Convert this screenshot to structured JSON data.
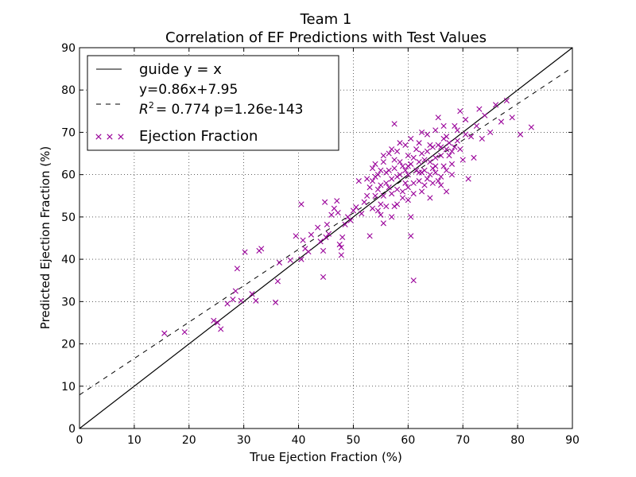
{
  "chart_data": {
    "type": "scatter",
    "title": "Team 1",
    "subtitle": "Correlation of EF Predictions with Test Values",
    "xlabel": "True Ejection Fraction (%)",
    "ylabel": "Predicted Ejection Fraction (%)",
    "xlim": [
      0,
      90
    ],
    "ylim": [
      0,
      90
    ],
    "xticks": [
      "0",
      "10",
      "20",
      "30",
      "40",
      "50",
      "60",
      "70",
      "80",
      "90"
    ],
    "yticks": [
      "0",
      "10",
      "20",
      "30",
      "40",
      "50",
      "60",
      "70",
      "80",
      "90"
    ],
    "grid": true,
    "legend_position": "top-left",
    "colors": {
      "scatter": "#990099",
      "guide": "#000000",
      "fit": "#000000"
    },
    "legend": {
      "guide_label": "guide y = x",
      "fit_label_line1": "y=0.86x+7.95",
      "fit_label_r2": "R",
      "fit_label_r2_rest": "= 0.774 p=1.26e-143",
      "scatter_label": "Ejection Fraction"
    },
    "guide": {
      "slope": 1,
      "intercept": 0
    },
    "fit": {
      "slope": 0.86,
      "intercept": 7.95
    },
    "series": [
      {
        "name": "Ejection Fraction",
        "points": [
          [
            15.5,
            22.5
          ],
          [
            19.2,
            22.8
          ],
          [
            24.5,
            25.5
          ],
          [
            25.2,
            25.0
          ],
          [
            25.8,
            23.5
          ],
          [
            27.0,
            29.5
          ],
          [
            28.0,
            30.5
          ],
          [
            28.5,
            32.5
          ],
          [
            28.8,
            37.8
          ],
          [
            29.5,
            30.2
          ],
          [
            30.2,
            41.7
          ],
          [
            31.5,
            31.8
          ],
          [
            32.2,
            30.2
          ],
          [
            32.8,
            42.0
          ],
          [
            33.2,
            42.5
          ],
          [
            35.8,
            29.8
          ],
          [
            36.2,
            34.8
          ],
          [
            36.5,
            39.2
          ],
          [
            38.5,
            39.8
          ],
          [
            39.5,
            45.5
          ],
          [
            40.5,
            40.0
          ],
          [
            40.5,
            53.0
          ],
          [
            40.8,
            44.5
          ],
          [
            41.2,
            42.5
          ],
          [
            41.8,
            41.8
          ],
          [
            42.3,
            45.8
          ],
          [
            43.5,
            47.5
          ],
          [
            44.0,
            44.2
          ],
          [
            44.5,
            42.0
          ],
          [
            44.8,
            53.5
          ],
          [
            44.5,
            35.8
          ],
          [
            45.0,
            45.2
          ],
          [
            45.2,
            48.2
          ],
          [
            45.5,
            46.0
          ],
          [
            46.0,
            50.5
          ],
          [
            46.5,
            52.0
          ],
          [
            47.0,
            53.8
          ],
          [
            47.2,
            51.0
          ],
          [
            47.5,
            43.5
          ],
          [
            47.8,
            42.8
          ],
          [
            47.8,
            41.0
          ],
          [
            48.0,
            45.2
          ],
          [
            48.5,
            48.2
          ],
          [
            49.0,
            50.0
          ],
          [
            49.5,
            49.2
          ],
          [
            50.0,
            51.5
          ],
          [
            50.5,
            52.3
          ],
          [
            51.0,
            58.5
          ],
          [
            51.5,
            50.8
          ],
          [
            52.0,
            53.5
          ],
          [
            52.5,
            55.0
          ],
          [
            53.0,
            57.0
          ],
          [
            53.0,
            45.5
          ],
          [
            53.5,
            52.0
          ],
          [
            54.0,
            59.5
          ],
          [
            54.0,
            62.5
          ],
          [
            54.5,
            56.5
          ],
          [
            55.0,
            53.0
          ],
          [
            55.5,
            64.5
          ],
          [
            55.5,
            48.5
          ],
          [
            56.0,
            58.0
          ],
          [
            56.5,
            61.0
          ],
          [
            57.0,
            55.5
          ],
          [
            57.0,
            66.0
          ],
          [
            57.5,
            72.0
          ],
          [
            57.5,
            52.5
          ],
          [
            58.0,
            59.5
          ],
          [
            58.5,
            63.0
          ],
          [
            58.5,
            67.5
          ],
          [
            59.0,
            56.0
          ],
          [
            59.5,
            61.0
          ],
          [
            60.0,
            54.0
          ],
          [
            60.0,
            64.5
          ],
          [
            60.5,
            50.0
          ],
          [
            60.5,
            45.5
          ],
          [
            61.0,
            35.0
          ],
          [
            61.0,
            58.0
          ],
          [
            61.5,
            66.0
          ],
          [
            62.0,
            60.5
          ],
          [
            62.5,
            56.0
          ],
          [
            62.5,
            70.0
          ],
          [
            63.0,
            63.5
          ],
          [
            63.5,
            59.0
          ],
          [
            64.0,
            67.0
          ],
          [
            64.0,
            54.5
          ],
          [
            64.5,
            61.5
          ],
          [
            65.0,
            64.0
          ],
          [
            65.5,
            58.5
          ],
          [
            65.5,
            73.5
          ],
          [
            66.0,
            66.5
          ],
          [
            66.5,
            62.0
          ],
          [
            67.0,
            69.0
          ],
          [
            67.0,
            56.0
          ],
          [
            67.5,
            64.5
          ],
          [
            68.0,
            60.0
          ],
          [
            68.5,
            71.5
          ],
          [
            69.0,
            68.0
          ],
          [
            69.5,
            75.0
          ],
          [
            70.0,
            63.5
          ],
          [
            70.5,
            73.0
          ],
          [
            71.0,
            59.0
          ],
          [
            71.5,
            69.0
          ],
          [
            72.0,
            64.0
          ],
          [
            72.5,
            71.5
          ],
          [
            73.0,
            75.5
          ],
          [
            73.5,
            68.5
          ],
          [
            74.0,
            74.0
          ],
          [
            75.0,
            70.0
          ],
          [
            76.0,
            76.5
          ],
          [
            77.0,
            72.5
          ],
          [
            78.0,
            77.5
          ],
          [
            79.0,
            73.5
          ],
          [
            80.5,
            69.5
          ],
          [
            82.5,
            71.2
          ],
          [
            53.5,
            58.5
          ],
          [
            54.5,
            60.0
          ],
          [
            55.0,
            57.5
          ],
          [
            55.5,
            55.0
          ],
          [
            56.0,
            60.5
          ],
          [
            56.5,
            57.0
          ],
          [
            57.0,
            59.0
          ],
          [
            57.5,
            61.5
          ],
          [
            58.0,
            56.5
          ],
          [
            58.5,
            60.0
          ],
          [
            59.0,
            62.0
          ],
          [
            59.5,
            58.0
          ],
          [
            60.0,
            60.0
          ],
          [
            60.5,
            62.5
          ],
          [
            61.0,
            64.0
          ],
          [
            61.5,
            61.0
          ],
          [
            62.0,
            63.0
          ],
          [
            62.5,
            65.0
          ],
          [
            63.0,
            61.0
          ],
          [
            63.5,
            65.5
          ],
          [
            64.0,
            63.0
          ],
          [
            64.5,
            66.5
          ],
          [
            65.0,
            62.0
          ],
          [
            65.5,
            67.0
          ],
          [
            66.0,
            64.5
          ],
          [
            66.5,
            68.5
          ],
          [
            67.0,
            66.0
          ],
          [
            67.5,
            67.5
          ],
          [
            68.0,
            65.5
          ],
          [
            68.5,
            66.5
          ],
          [
            69.0,
            70.5
          ],
          [
            54.0,
            55.0
          ],
          [
            54.5,
            51.5
          ],
          [
            55.0,
            50.5
          ],
          [
            56.0,
            52.5
          ],
          [
            57.0,
            50.0
          ],
          [
            58.0,
            53.0
          ],
          [
            59.0,
            54.5
          ],
          [
            60.0,
            57.0
          ],
          [
            61.0,
            55.5
          ],
          [
            62.0,
            58.5
          ],
          [
            63.0,
            57.5
          ],
          [
            64.0,
            60.0
          ],
          [
            65.0,
            60.5
          ],
          [
            66.0,
            59.5
          ],
          [
            67.0,
            61.0
          ],
          [
            68.0,
            62.5
          ],
          [
            52.5,
            59.0
          ],
          [
            53.5,
            61.5
          ],
          [
            55.5,
            63.0
          ],
          [
            56.5,
            65.0
          ],
          [
            58.0,
            65.5
          ],
          [
            59.5,
            67.0
          ],
          [
            60.5,
            68.5
          ],
          [
            62.0,
            67.5
          ],
          [
            63.5,
            69.5
          ],
          [
            65.0,
            70.5
          ],
          [
            66.5,
            71.5
          ],
          [
            55.0,
            61.0
          ],
          [
            57.5,
            63.5
          ],
          [
            60.0,
            62.0
          ],
          [
            62.5,
            60.5
          ],
          [
            64.5,
            58.0
          ],
          [
            66.0,
            57.5
          ],
          [
            69.5,
            66.0
          ],
          [
            70.5,
            69.5
          ]
        ]
      }
    ]
  }
}
